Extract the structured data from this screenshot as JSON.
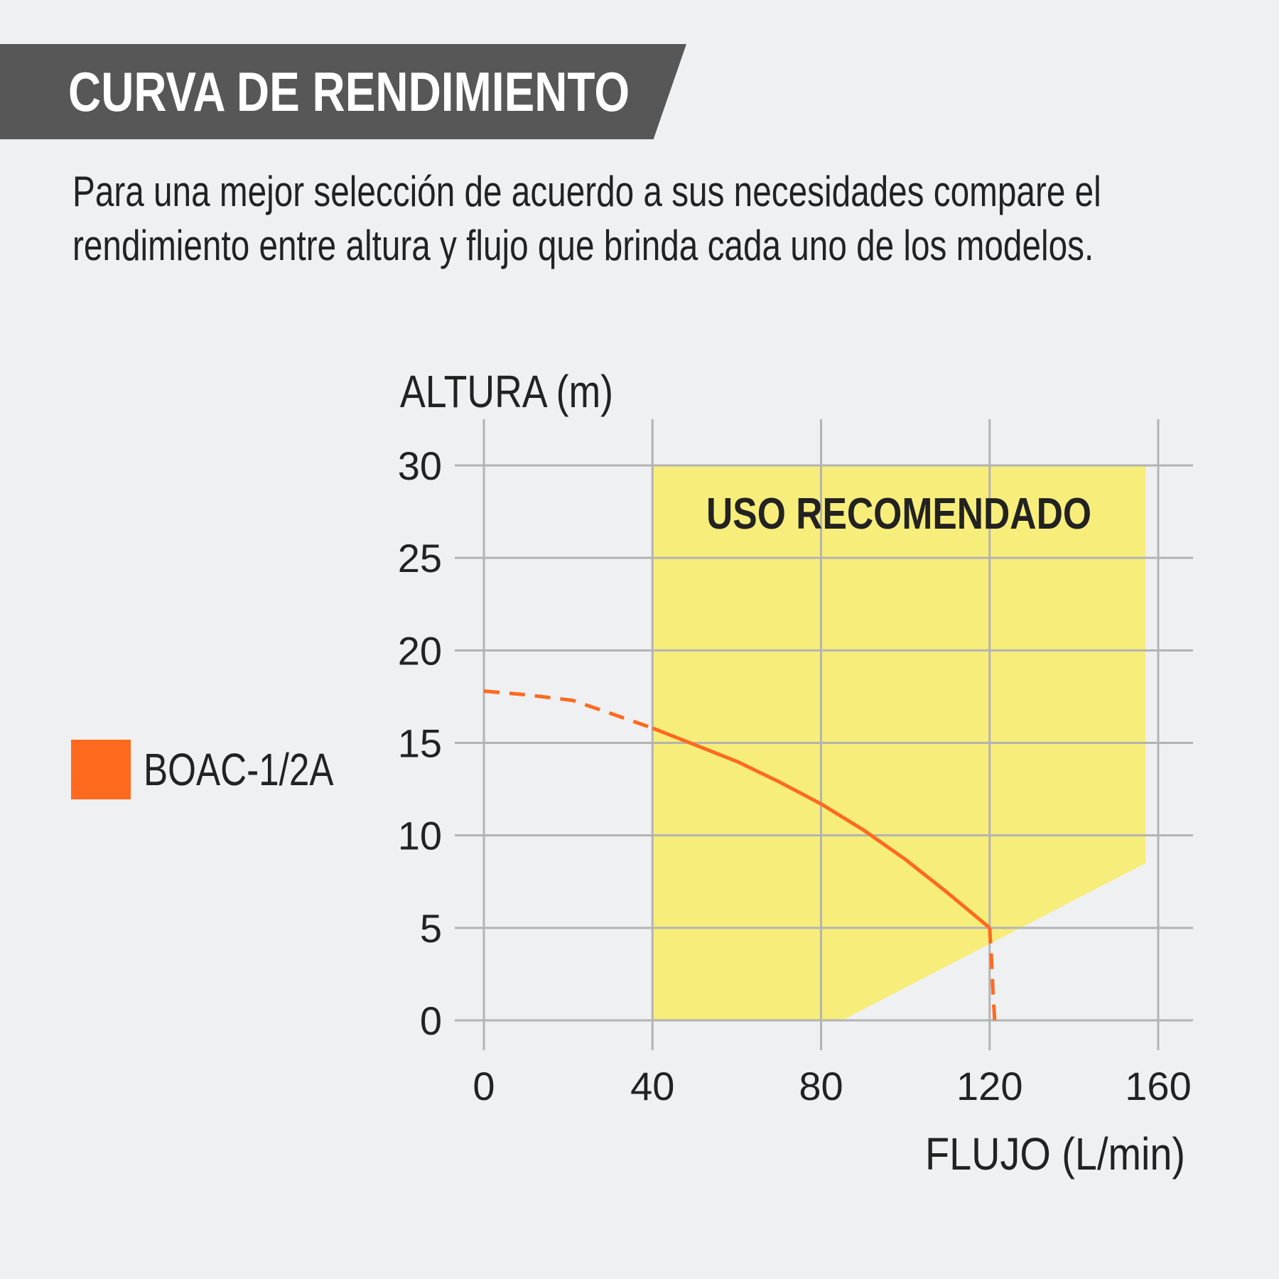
{
  "header": {
    "title": "CURVA DE RENDIMIENTO",
    "banner_color": "#575757"
  },
  "intro": {
    "line1": "Para una mejor selección de acuerdo a sus necesidades compare el",
    "line2": "rendimiento entre altura y flujo que brinda cada uno de los modelos."
  },
  "legend": {
    "label": "BOAC-1/2A",
    "color": "#ff6a1f"
  },
  "chart_data": {
    "type": "line",
    "xlabel": "FLUJO (L/min)",
    "ylabel": "ALTURA (m)",
    "xlim": [
      0,
      160
    ],
    "ylim": [
      0,
      30
    ],
    "xticks": [
      "0",
      "40",
      "80",
      "120",
      "160"
    ],
    "yticks": [
      "0",
      "5",
      "10",
      "15",
      "20",
      "25",
      "30"
    ],
    "grid": true,
    "legend_position": "left",
    "recommended_zone": {
      "label": "USO RECOMENDADO",
      "color": "#f7ed7a",
      "polygon": [
        [
          40,
          0
        ],
        [
          40,
          30
        ],
        [
          157,
          30
        ],
        [
          157,
          8.5
        ],
        [
          85,
          0
        ]
      ]
    },
    "series": [
      {
        "name": "BOAC-1/2A",
        "color": "#ff6a1f",
        "dashed_segments": [
          [
            [
              0,
              17.8
            ],
            [
              10,
              17.6
            ],
            [
              21,
              17.3
            ],
            [
              30,
              16.6
            ],
            [
              40,
              15.8
            ]
          ],
          [
            [
              120,
              5
            ],
            [
              120.4,
              3.5
            ],
            [
              120.8,
              1.5
            ],
            [
              121.2,
              0
            ]
          ]
        ],
        "solid_segment": [
          [
            40,
            15.8
          ],
          [
            50,
            14.9
          ],
          [
            60,
            14.0
          ],
          [
            70,
            12.9
          ],
          [
            80,
            11.7
          ],
          [
            90,
            10.3
          ],
          [
            100,
            8.7
          ],
          [
            110,
            6.9
          ],
          [
            120,
            5
          ]
        ]
      }
    ]
  }
}
